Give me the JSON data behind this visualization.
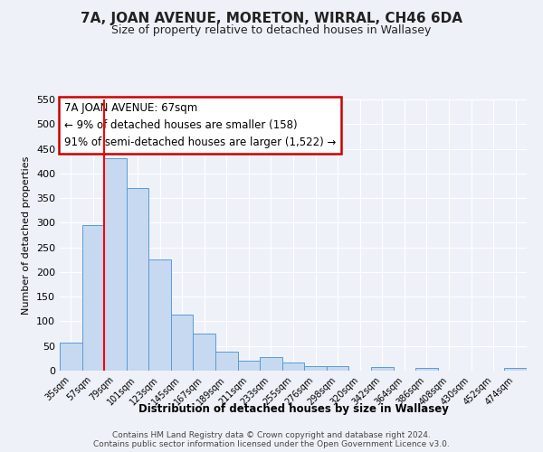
{
  "title": "7A, JOAN AVENUE, MORETON, WIRRAL, CH46 6DA",
  "subtitle": "Size of property relative to detached houses in Wallasey",
  "xlabel": "Distribution of detached houses by size in Wallasey",
  "ylabel": "Number of detached properties",
  "bar_labels": [
    "35sqm",
    "57sqm",
    "79sqm",
    "101sqm",
    "123sqm",
    "145sqm",
    "167sqm",
    "189sqm",
    "211sqm",
    "233sqm",
    "255sqm",
    "276sqm",
    "298sqm",
    "320sqm",
    "342sqm",
    "364sqm",
    "386sqm",
    "408sqm",
    "430sqm",
    "452sqm",
    "474sqm"
  ],
  "bar_values": [
    57,
    295,
    430,
    370,
    225,
    113,
    76,
    38,
    21,
    28,
    17,
    10,
    10,
    0,
    8,
    0,
    5,
    0,
    0,
    0,
    5
  ],
  "bar_color": "#c6d9f0",
  "bar_edgecolor": "#5a9bd5",
  "ylim": [
    0,
    550
  ],
  "yticks": [
    0,
    50,
    100,
    150,
    200,
    250,
    300,
    350,
    400,
    450,
    500,
    550
  ],
  "red_line_x": 1.5,
  "annotation_line1": "7A JOAN AVENUE: 67sqm",
  "annotation_line2": "← 9% of detached houses are smaller (158)",
  "annotation_line3": "91% of semi-detached houses are larger (1,522) →",
  "annotation_box_color": "#ffffff",
  "annotation_box_edgecolor": "#cc0000",
  "footer1": "Contains HM Land Registry data © Crown copyright and database right 2024.",
  "footer2": "Contains public sector information licensed under the Open Government Licence v3.0.",
  "background_color": "#eef2f8",
  "grid_color": "#ffffff",
  "title_fontsize": 11,
  "subtitle_fontsize": 9
}
